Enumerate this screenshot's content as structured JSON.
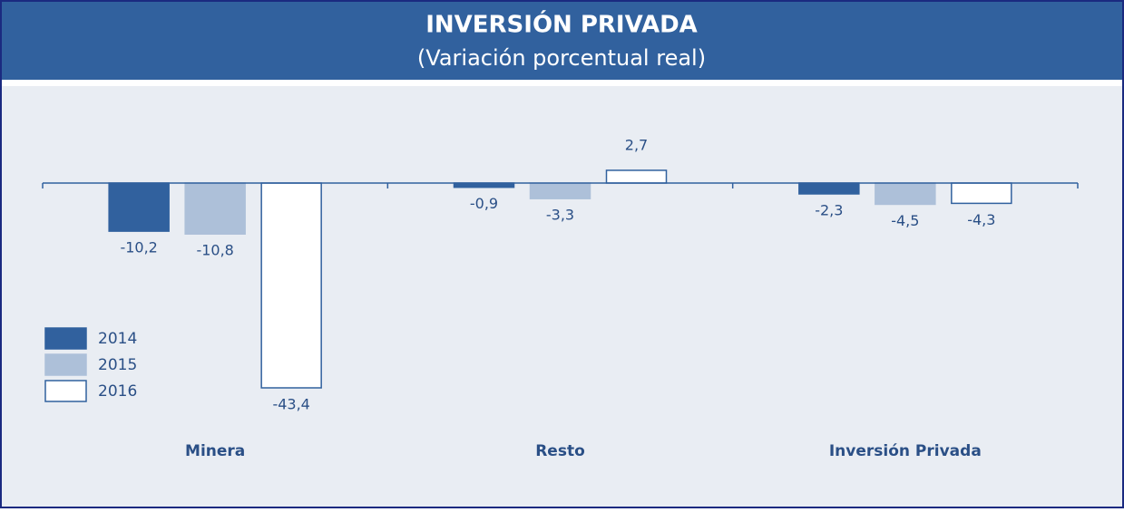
{
  "chart_data": {
    "type": "bar",
    "title": "INVERSIÓN PRIVADA",
    "subtitle": "(Variación porcentual real)",
    "categories": [
      "Minera",
      "Resto",
      "Inversión Privada"
    ],
    "series": [
      {
        "name": "2014",
        "color": "#31619e",
        "values": [
          -10.2,
          -0.9,
          -2.3
        ],
        "value_labels": [
          "-10,2",
          "-0,9",
          "-2,3"
        ]
      },
      {
        "name": "2015",
        "color": "#adc0d9",
        "values": [
          -10.8,
          -3.3,
          -4.5
        ],
        "value_labels": [
          "-10,8",
          "-3,3",
          "-4,5"
        ]
      },
      {
        "name": "2016",
        "color": "#ffffff",
        "values": [
          -43.4,
          2.7,
          -4.3
        ],
        "value_labels": [
          "-43,4",
          "2,7",
          "-4,3"
        ]
      }
    ],
    "legend": "bottom-left"
  }
}
